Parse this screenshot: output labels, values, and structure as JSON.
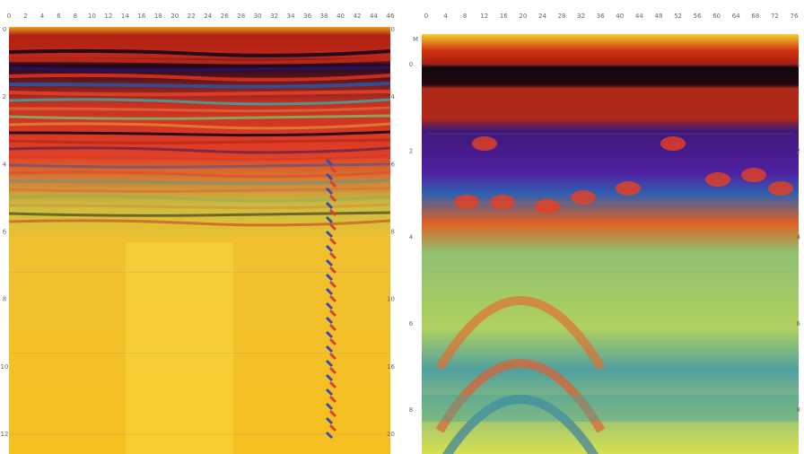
{
  "panels": [
    {
      "top_labels": [
        "0",
        "2",
        "4",
        "6",
        "8",
        "10",
        "12",
        "14",
        "16",
        "18",
        "20",
        "22",
        "24",
        "26",
        "28",
        "30",
        "32",
        "34",
        "36",
        "38",
        "40",
        "42",
        "44",
        "46"
      ],
      "left_labels": [
        "0",
        "2",
        "4",
        "6",
        "8",
        "10",
        "12"
      ],
      "right_labels": [
        "0",
        "4",
        "6",
        "8",
        "10",
        "16",
        "20"
      ]
    },
    {
      "corner_label": "M",
      "top_labels": [
        "0",
        "4",
        "8",
        "12",
        "16",
        "20",
        "24",
        "28",
        "32",
        "36",
        "40",
        "44",
        "48",
        "52",
        "56",
        "60",
        "64",
        "68",
        "72",
        "76"
      ],
      "left_labels": [
        "0",
        "2",
        "4",
        "6",
        "8"
      ],
      "right_labels": [
        "1",
        "2",
        "4",
        "6",
        "8"
      ]
    }
  ]
}
